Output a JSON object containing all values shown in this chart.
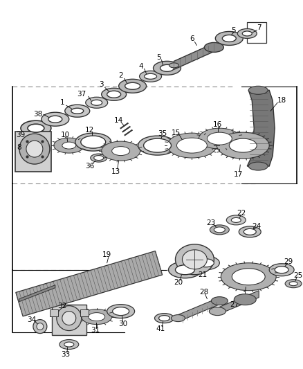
{
  "bg_color": "#ffffff",
  "line_color": "#000000",
  "dark_gray": "#333333",
  "mid_gray": "#888888",
  "light_gray": "#cccccc",
  "part_gray": "#999999",
  "fig_width": 4.38,
  "fig_height": 5.33,
  "dpi": 100
}
